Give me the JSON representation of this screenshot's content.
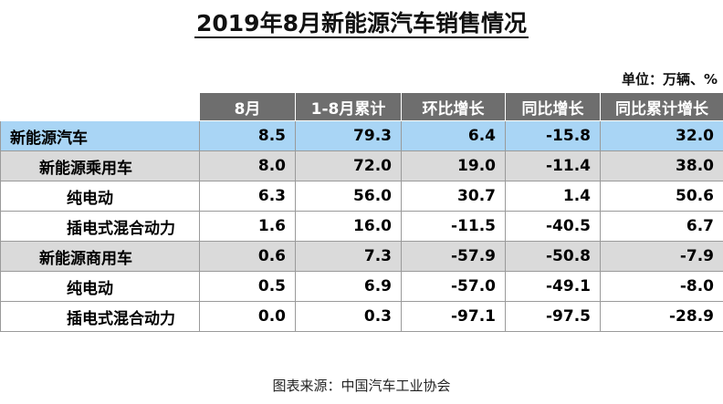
{
  "title": "2019年8月新能源汽车销售情况",
  "unit": "单位：万辆、%",
  "table": {
    "headers": [
      "8月",
      "1-8月累计",
      "环比增长",
      "同比增长",
      "同比累计增长"
    ],
    "rows": [
      {
        "name": "新能源汽车",
        "level": "total",
        "values": [
          "8.5",
          "79.3",
          "6.4",
          "-15.8",
          "32.0"
        ]
      },
      {
        "name": "新能源乘用车",
        "level": "sub",
        "values": [
          "8.0",
          "72.0",
          "19.0",
          "-11.4",
          "38.0"
        ]
      },
      {
        "name": "纯电动",
        "level": "leaf",
        "values": [
          "6.3",
          "56.0",
          "30.7",
          "1.4",
          "50.6"
        ]
      },
      {
        "name": "插电式混合动力",
        "level": "leaf",
        "values": [
          "1.6",
          "16.0",
          "-11.5",
          "-40.5",
          "6.7"
        ]
      },
      {
        "name": "新能源商用车",
        "level": "sub",
        "values": [
          "0.6",
          "7.3",
          "-57.9",
          "-50.8",
          "-7.9"
        ]
      },
      {
        "name": "纯电动",
        "level": "leaf",
        "values": [
          "0.5",
          "6.9",
          "-57.0",
          "-49.1",
          "-8.0"
        ]
      },
      {
        "name": "插电式混合动力",
        "level": "leaf",
        "values": [
          "0.0",
          "0.3",
          "-97.1",
          "-97.5",
          "-28.9"
        ]
      }
    ]
  },
  "source": "图表来源：中国汽车工业协会",
  "colors": {
    "header_bg": "#6e6e6e",
    "total_row_bg": "#a9d5f5",
    "sub_row_bg": "#dadada"
  }
}
